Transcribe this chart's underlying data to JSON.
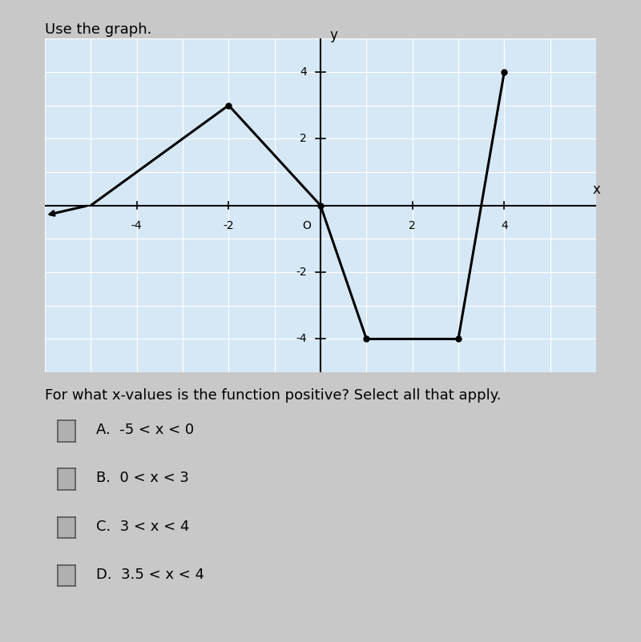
{
  "title": "Use the graph.",
  "graph_points": [
    [
      -5,
      0
    ],
    [
      -2,
      3
    ],
    [
      0,
      0
    ],
    [
      1,
      -4
    ],
    [
      3,
      -4
    ],
    [
      4,
      4
    ]
  ],
  "xlim": [
    -6,
    6
  ],
  "ylim": [
    -5,
    5
  ],
  "xticks": [
    -4,
    -2,
    0,
    2,
    4
  ],
  "yticks": [
    -4,
    -2,
    0,
    2,
    4
  ],
  "line_color": "#000000",
  "line_width": 2.2,
  "bg_color": "#d6e8f5",
  "grid_color": "#ffffff",
  "question_text": "For what x-values is the function positive? Select all that apply.",
  "choices": [
    "A.  -5 < x < 0",
    "B.  0 < x < 3",
    "C.  3 < x < 4",
    "D.  3.5 < x < 4"
  ],
  "outer_bg": "#c8c8c8",
  "checkbox_color": "#888888",
  "text_color": "#000000",
  "title_fontsize": 13,
  "axis_label_fontsize": 11,
  "choice_fontsize": 13
}
